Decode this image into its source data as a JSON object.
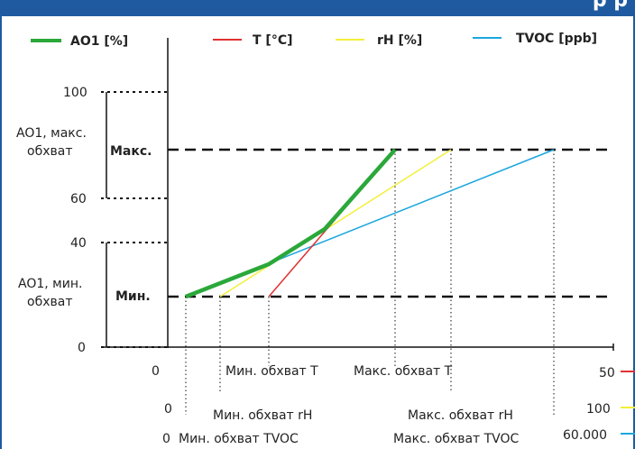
{
  "header": {
    "title": "р р"
  },
  "legend": {
    "ao1": {
      "label": "AO1 [%]",
      "color": "#2aa83a"
    },
    "t": {
      "label": "T [°C]",
      "color": "#e03030"
    },
    "rh": {
      "label": "rH [%]",
      "color": "#f3ef3a"
    },
    "tvoc": {
      "label": "TVOC [ppb]",
      "color": "#1ba6dd"
    }
  },
  "y_axis": {
    "ticks": [
      "100",
      "60",
      "40",
      "0"
    ],
    "max_band": "AO1, макс.\nобхват",
    "min_band": "AO1, мин.\nобхват",
    "max_label": "Макс.",
    "min_label": "Мин."
  },
  "x_axis": {
    "t": {
      "start": "0",
      "end": "50",
      "min_label": "Мин. обхват T",
      "max_label": "Макс. обхват T"
    },
    "rh": {
      "start": "0",
      "end": "100",
      "min_label": "Мин. обхват rH",
      "max_label": "Макс. обхват rH"
    },
    "tvoc": {
      "start": "0",
      "end": "60.000",
      "min_label": "Мин. обхват TVOC",
      "max_label": "Макс. обхват TVOC"
    }
  }
}
